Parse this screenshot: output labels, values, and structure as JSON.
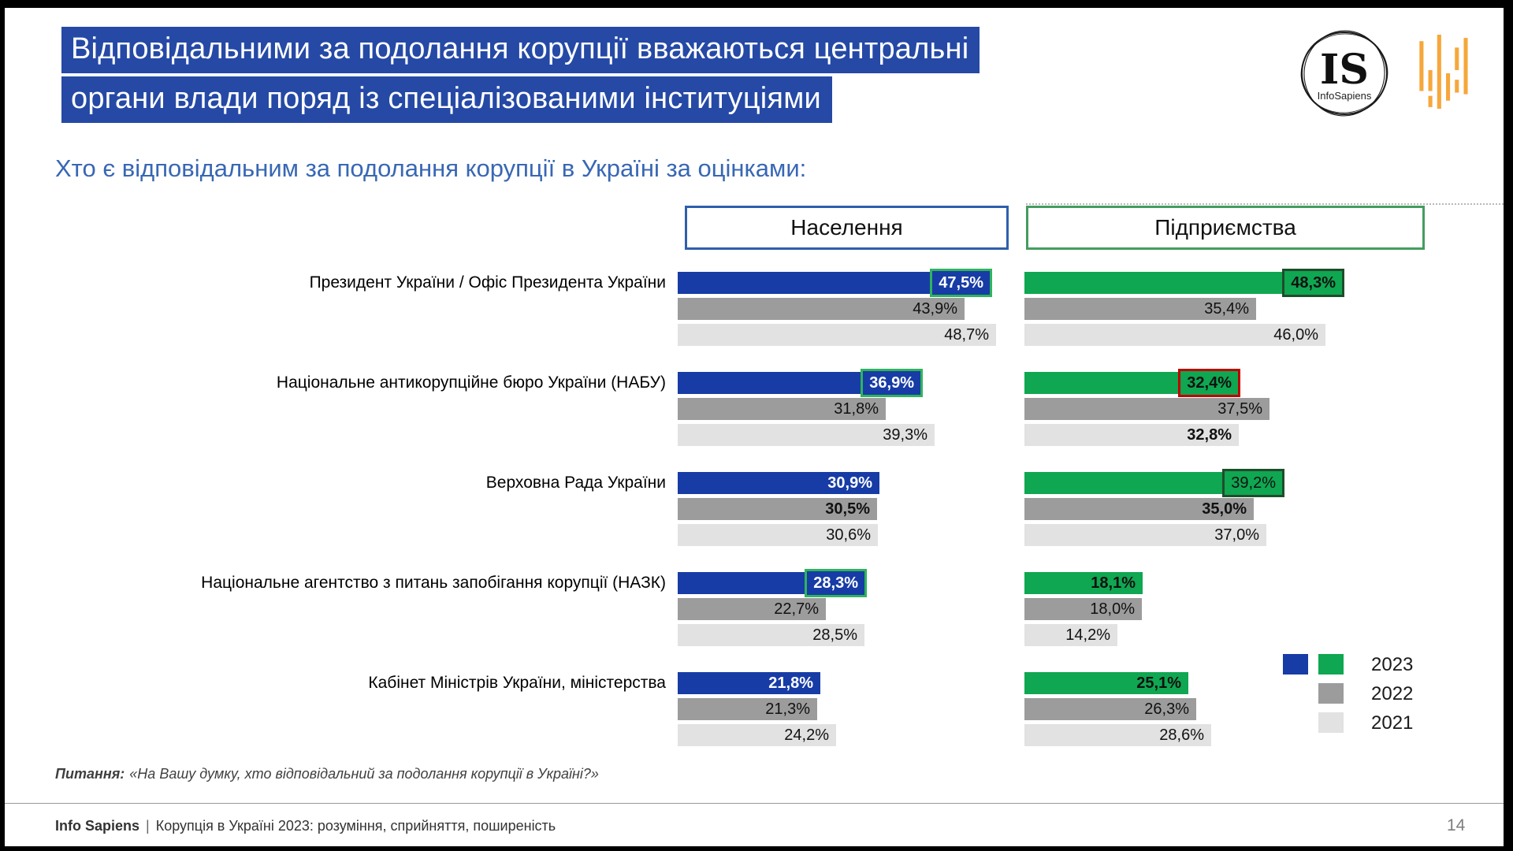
{
  "slide": {
    "title_line1": "Відповідальними за подолання корупції вважаються центральні",
    "title_line2": "органи влади поряд із спеціалізованими інституціями",
    "subtitle": "Хто є відповідальним за подолання корупції в Україні за оцінками:",
    "page_number": "14",
    "footnote": {
      "label": "Питання:",
      "text": "«На Вашу думку, хто відповідальний за подолання корупції в Україні?»"
    },
    "footer": {
      "brand": "Info Sapiens",
      "separator": "|",
      "text": "Корупція в Україні 2023: розуміння, сприйняття, поширеність"
    },
    "logo": {
      "monogram": "IS",
      "name": "InfoSapiens"
    }
  },
  "colors": {
    "title_bg": "#2549A5",
    "subtitle_blue": "#3867B4",
    "blue_2023": "#173CA6",
    "green_2023": "#0FA751",
    "gray_2022": "#9C9C9C",
    "gray_2021": "#E2E2E2",
    "box_green": "#2FB45C",
    "box_darkgreen": "#1E4D2B",
    "box_red": "#C00000",
    "header_blue_border": "#2E5FAC",
    "header_green_border": "#449D5F",
    "wave_orange": "#F6A73B"
  },
  "chart_data": {
    "type": "bar",
    "orientation": "horizontal",
    "unit": "%",
    "value_range": [
      0,
      50
    ],
    "grid": false,
    "legend_position": "bottom-right",
    "group_headers": [
      {
        "label": "Населення",
        "border": "blue"
      },
      {
        "label": "Підприємства",
        "border": "green"
      }
    ],
    "years": [
      "2023",
      "2022",
      "2021"
    ],
    "legend": [
      {
        "label": "2023",
        "swatches": [
          "blue_2023",
          "green_2023"
        ]
      },
      {
        "label": "2022",
        "swatches": [
          "gray_2022"
        ]
      },
      {
        "label": "2021",
        "swatches": [
          "gray_2021"
        ]
      }
    ],
    "categories": [
      "Президент України / Офіс Президента України",
      "Національне антикорупційне бюро України (НАБУ)",
      "Верховна Рада України",
      "Національне агентство з питань запобігання корупції (НАЗК)",
      "Кабінет Міністрів України, міністерства"
    ],
    "rows": [
      {
        "category": "Президент України / Офіс Президента України",
        "naselennia": [
          {
            "year": "2023",
            "value": 47.5,
            "label": "47,5%",
            "bold": true,
            "box": "green"
          },
          {
            "year": "2022",
            "value": 43.9,
            "label": "43,9%",
            "bold": false,
            "box": null
          },
          {
            "year": "2021",
            "value": 48.7,
            "label": "48,7%",
            "bold": false,
            "box": null
          }
        ],
        "pidpryiemstva": [
          {
            "year": "2023",
            "value": 48.3,
            "label": "48,3%",
            "bold": true,
            "box": "darkgreen"
          },
          {
            "year": "2022",
            "value": 35.4,
            "label": "35,4%",
            "bold": false,
            "box": null
          },
          {
            "year": "2021",
            "value": 46.0,
            "label": "46,0%",
            "bold": false,
            "box": null
          }
        ]
      },
      {
        "category": "Національне антикорупційне бюро України (НАБУ)",
        "naselennia": [
          {
            "year": "2023",
            "value": 36.9,
            "label": "36,9%",
            "bold": true,
            "box": "green"
          },
          {
            "year": "2022",
            "value": 31.8,
            "label": "31,8%",
            "bold": false,
            "box": null
          },
          {
            "year": "2021",
            "value": 39.3,
            "label": "39,3%",
            "bold": false,
            "box": null
          }
        ],
        "pidpryiemstva": [
          {
            "year": "2023",
            "value": 32.4,
            "label": "32,4%",
            "bold": true,
            "box": "red"
          },
          {
            "year": "2022",
            "value": 37.5,
            "label": "37,5%",
            "bold": false,
            "box": null
          },
          {
            "year": "2021",
            "value": 32.8,
            "label": "32,8%",
            "bold": true,
            "box": null
          }
        ]
      },
      {
        "category": "Верховна Рада України",
        "naselennia": [
          {
            "year": "2023",
            "value": 30.9,
            "label": "30,9%",
            "bold": true,
            "box": null
          },
          {
            "year": "2022",
            "value": 30.5,
            "label": "30,5%",
            "bold": true,
            "box": null
          },
          {
            "year": "2021",
            "value": 30.6,
            "label": "30,6%",
            "bold": false,
            "box": null
          }
        ],
        "pidpryiemstva": [
          {
            "year": "2023",
            "value": 39.2,
            "label": "39,2%",
            "bold": false,
            "box": "darkgreen"
          },
          {
            "year": "2022",
            "value": 35.0,
            "label": "35,0%",
            "bold": true,
            "box": null
          },
          {
            "year": "2021",
            "value": 37.0,
            "label": "37,0%",
            "bold": false,
            "box": null
          }
        ]
      },
      {
        "category": "Національне агентство з питань запобігання корупції (НАЗК)",
        "naselennia": [
          {
            "year": "2023",
            "value": 28.3,
            "label": "28,3%",
            "bold": true,
            "box": "green"
          },
          {
            "year": "2022",
            "value": 22.7,
            "label": "22,7%",
            "bold": false,
            "box": null
          },
          {
            "year": "2021",
            "value": 28.5,
            "label": "28,5%",
            "bold": false,
            "box": null
          }
        ],
        "pidpryiemstva": [
          {
            "year": "2023",
            "value": 18.1,
            "label": "18,1%",
            "bold": true,
            "box": null
          },
          {
            "year": "2022",
            "value": 18.0,
            "label": "18,0%",
            "bold": false,
            "box": null
          },
          {
            "year": "2021",
            "value": 14.2,
            "label": "14,2%",
            "bold": false,
            "box": null
          }
        ]
      },
      {
        "category": "Кабінет Міністрів України, міністерства",
        "naselennia": [
          {
            "year": "2023",
            "value": 21.8,
            "label": "21,8%",
            "bold": true,
            "box": null
          },
          {
            "year": "2022",
            "value": 21.3,
            "label": "21,3%",
            "bold": false,
            "box": null
          },
          {
            "year": "2021",
            "value": 24.2,
            "label": "24,2%",
            "bold": false,
            "box": null
          }
        ],
        "pidpryiemstva": [
          {
            "year": "2023",
            "value": 25.1,
            "label": "25,1%",
            "bold": true,
            "box": null
          },
          {
            "year": "2022",
            "value": 26.3,
            "label": "26,3%",
            "bold": false,
            "box": null
          },
          {
            "year": "2021",
            "value": 28.6,
            "label": "28,6%",
            "bold": false,
            "box": null
          }
        ]
      }
    ]
  }
}
